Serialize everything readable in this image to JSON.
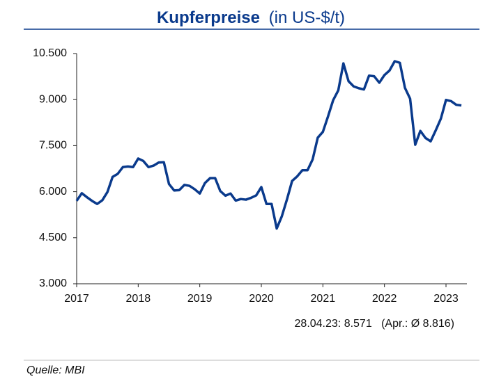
{
  "chart_data": {
    "type": "line",
    "title": "Kupferpreise",
    "subtitle": "(in US-$/t)",
    "categories": [
      "2017",
      null,
      null,
      null,
      null,
      null,
      null,
      null,
      null,
      null,
      null,
      null,
      "2018",
      null,
      null,
      null,
      null,
      null,
      null,
      null,
      null,
      null,
      null,
      null,
      "2019",
      null,
      null,
      null,
      null,
      null,
      null,
      null,
      null,
      null,
      null,
      null,
      "2020",
      null,
      null,
      null,
      null,
      null,
      null,
      null,
      null,
      null,
      null,
      null,
      "2021",
      null,
      null,
      null,
      null,
      null,
      null,
      null,
      null,
      null,
      null,
      null,
      "2022",
      null,
      null,
      null,
      null,
      null,
      null,
      null,
      null,
      null,
      null,
      null,
      "2023",
      null,
      null,
      null
    ],
    "values": [
      5700,
      5950,
      5820,
      5700,
      5600,
      5720,
      5990,
      6480,
      6580,
      6800,
      6820,
      6800,
      7080,
      7000,
      6800,
      6850,
      6950,
      6960,
      6250,
      6040,
      6050,
      6220,
      6190,
      6080,
      5940,
      6280,
      6440,
      6440,
      6020,
      5870,
      5940,
      5710,
      5760,
      5740,
      5800,
      5880,
      6150,
      5600,
      5600,
      4800,
      5200,
      5750,
      6350,
      6500,
      6700,
      6700,
      7050,
      7760,
      7950,
      8450,
      8980,
      9300,
      10180,
      9600,
      9430,
      9370,
      9330,
      9780,
      9760,
      9550,
      9800,
      9950,
      10250,
      10200,
      9380,
      9030,
      7530,
      7980,
      7750,
      7640,
      8000,
      8380,
      8990,
      8950,
      8830,
      8810
    ],
    "color": "#0a3a8c",
    "ylim": [
      3000,
      10500
    ],
    "yticks": [
      {
        "value": 3000,
        "label": "3.000"
      },
      {
        "value": 4500,
        "label": "4.500"
      },
      {
        "value": 6000,
        "label": "6.000"
      },
      {
        "value": 7500,
        "label": "7.500"
      },
      {
        "value": 9000,
        "label": "9.000"
      },
      {
        "value": 10500,
        "label": "10.500"
      }
    ],
    "annotation": "28.04.23: 8.571   (Apr.: Ø 8.816)",
    "source": "Quelle: MBI",
    "grid": false
  }
}
